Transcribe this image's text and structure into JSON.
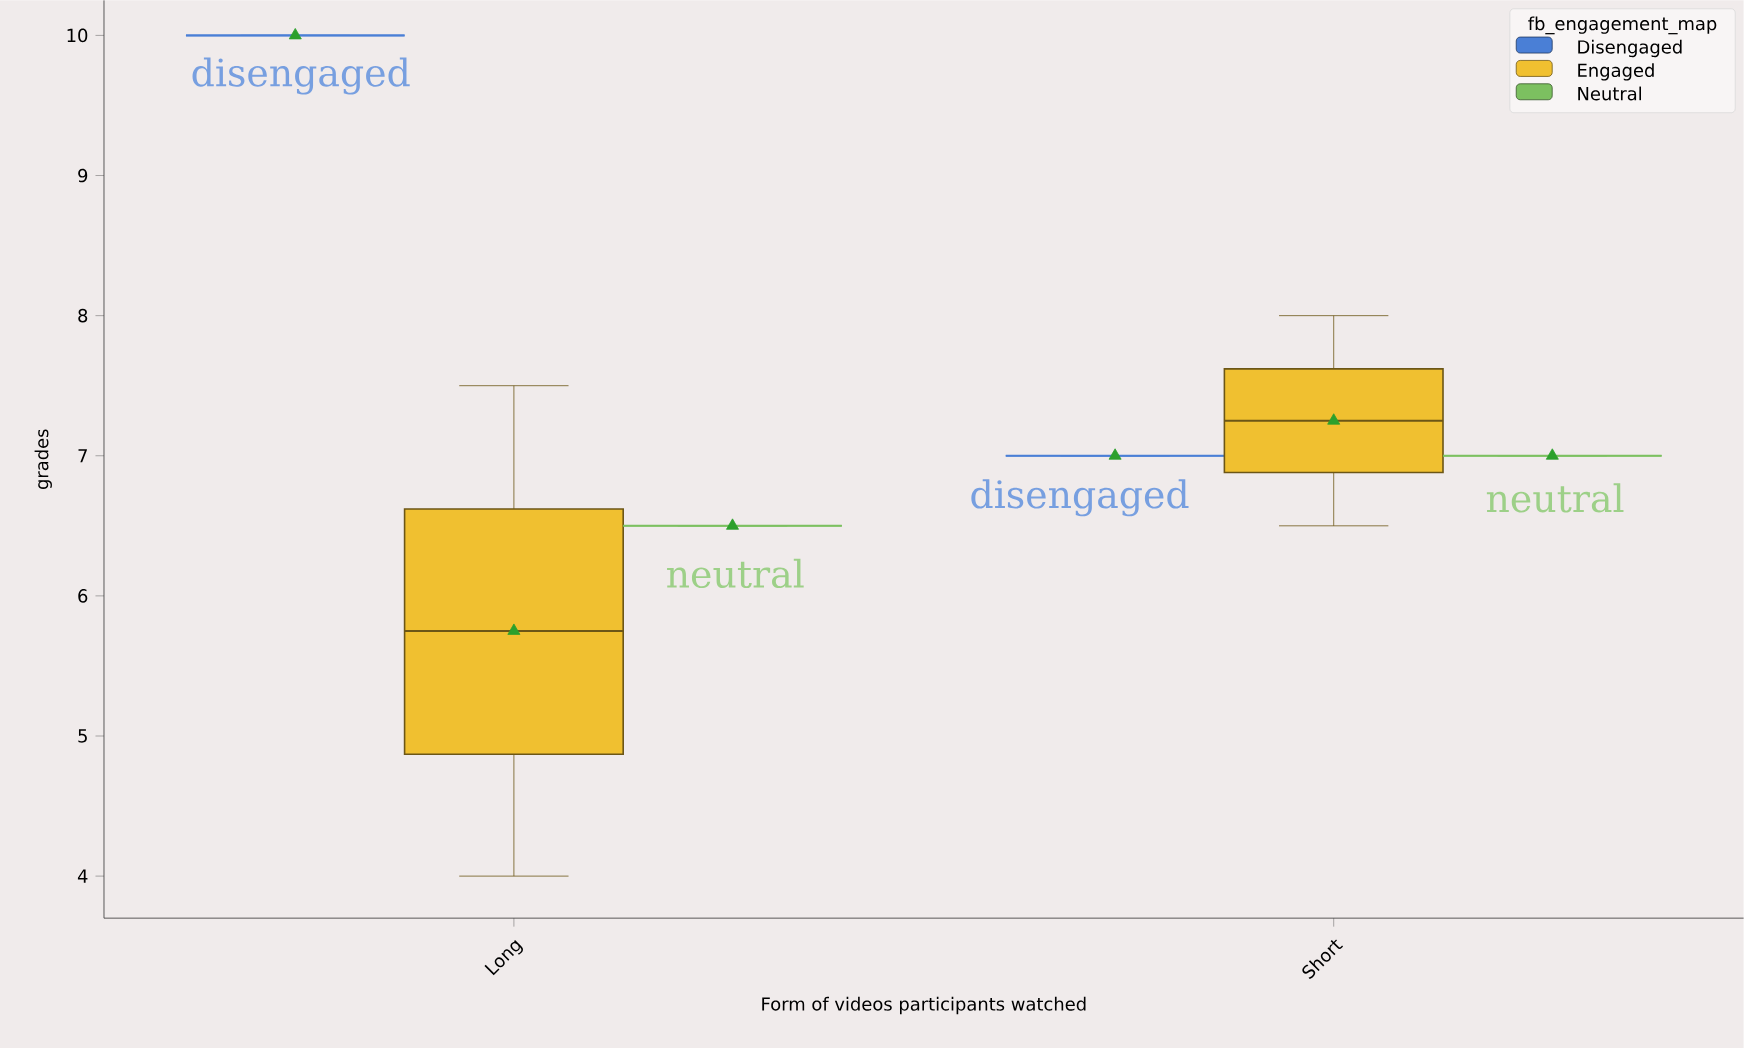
{
  "chart_data": {
    "type": "box",
    "xlabel": "Form of videos participants watched",
    "ylabel": "grades",
    "legend_title": "fb_engagement_map",
    "legend": "top right",
    "marker": "triangle",
    "categories": [
      "Long",
      "Short"
    ],
    "ylim": [
      3.7,
      10.25
    ],
    "yticks": [
      4,
      5,
      6,
      7,
      8,
      9,
      10
    ],
    "series": [
      {
        "name": "Disengaged",
        "color": "#4a7fd6",
        "boxes": [
          {
            "low": 10,
            "q1": 10,
            "median": 10,
            "q3": 10,
            "high": 10,
            "mean": 10
          },
          {
            "low": 7,
            "q1": 7,
            "median": 7,
            "q3": 7,
            "high": 7,
            "mean": 7
          }
        ]
      },
      {
        "name": "Engaged",
        "color": "#f0c030",
        "boxes": [
          {
            "low": 4,
            "q1": 4.87,
            "median": 5.75,
            "q3": 6.62,
            "high": 7.5,
            "mean": 5.75
          },
          {
            "low": 6.5,
            "q1": 6.88,
            "median": 7.25,
            "q3": 7.62,
            "high": 8,
            "mean": 7.25
          }
        ]
      },
      {
        "name": "Neutral",
        "color": "#7cc060",
        "boxes": [
          {
            "low": 6.5,
            "q1": 6.5,
            "median": 6.5,
            "q3": 6.5,
            "high": 6.5,
            "mean": 6.5
          },
          {
            "low": 7,
            "q1": 7,
            "median": 7,
            "q3": 7,
            "high": 7,
            "mean": 7
          }
        ]
      }
    ],
    "annotations": [
      "disengaged",
      "neutral",
      "disengaged",
      "neutral"
    ]
  }
}
